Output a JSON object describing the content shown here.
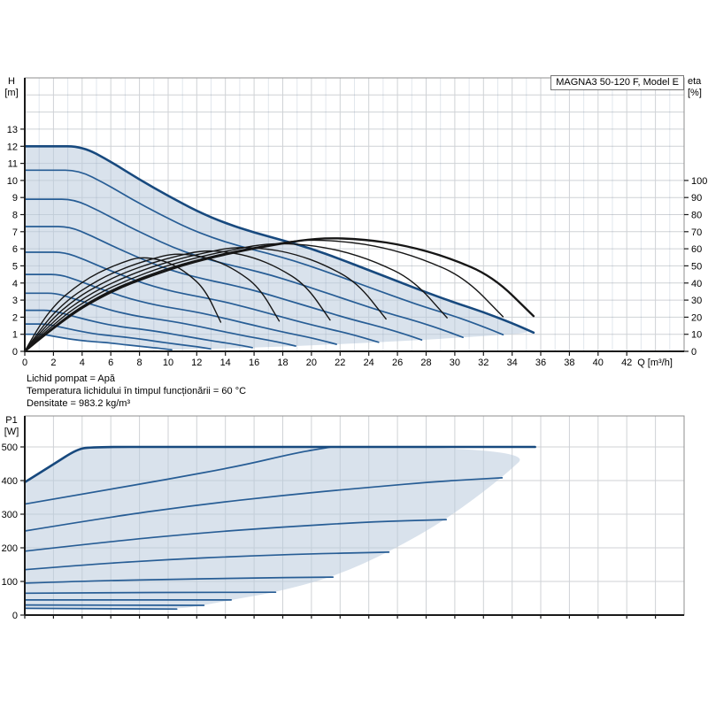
{
  "title_box": {
    "label": "MAGNA3 50-120 F, Model E"
  },
  "notes": [
    "Lichid pompat = Apă",
    "Temperatura lichidului în timpul funcționării = 60 °C",
    "Densitate = 983.2 kg/m³"
  ],
  "colors": {
    "curve_main": "#17497e",
    "curve_inner": "#275d95",
    "efficiency": "#161616",
    "envelope_fill": "#b9cadd",
    "grid": "#cfd2d6",
    "grid_minor": "rgba(110,135,165,0.20)",
    "border": "#8f8f8f",
    "axis": "#1a1a1a",
    "text": "#000000"
  },
  "chart_data": [
    {
      "type": "line",
      "name": "head-flow-efficiency-chart",
      "title": "MAGNA3 50-120 F, Model E",
      "x_axis": {
        "label": "Q [m³/h]",
        "min": 0,
        "max": 46,
        "grid_step": 2,
        "ticks": [
          0,
          2,
          4,
          6,
          8,
          10,
          12,
          14,
          16,
          18,
          20,
          22,
          24,
          26,
          28,
          30,
          32,
          34,
          36,
          38,
          40,
          42
        ]
      },
      "y_axis": {
        "name": "H",
        "unit": "[m]",
        "min": 0,
        "max": 16,
        "ticks": [
          0,
          1,
          2,
          3,
          4,
          5,
          6,
          7,
          8,
          9,
          10,
          11,
          12,
          13
        ]
      },
      "y2_axis": {
        "name": "eta",
        "unit": "[%]",
        "min": 0,
        "max": 100,
        "per_left_unit": 10,
        "ticks": [
          0,
          10,
          20,
          30,
          40,
          50,
          60,
          70,
          80,
          90,
          100
        ]
      },
      "max_speed_curve": [
        [
          0,
          12
        ],
        [
          2,
          12
        ],
        [
          4,
          12
        ],
        [
          6,
          11.1
        ],
        [
          8,
          10.05
        ],
        [
          10,
          9.1
        ],
        [
          12,
          8.2
        ],
        [
          14,
          7.5
        ],
        [
          16,
          6.95
        ],
        [
          18,
          6.5
        ],
        [
          20,
          6.0
        ],
        [
          22,
          5.4
        ],
        [
          24,
          4.75
        ],
        [
          26,
          4.1
        ],
        [
          28,
          3.45
        ],
        [
          30,
          2.85
        ],
        [
          32,
          2.3
        ],
        [
          34,
          1.65
        ],
        [
          35.5,
          1.1
        ]
      ],
      "speed_curve_start_heads": [
        10.6,
        8.9,
        7.3,
        5.8,
        4.5,
        3.4,
        2.4,
        1.6,
        1.0
      ],
      "rated_shutoff_head": 12,
      "max_flow": 35.5,
      "efficiency_curves": {
        "speed_ratios": [
          1.0,
          0.94,
          0.83,
          0.71,
          0.6,
          0.5,
          0.385
        ],
        "peak_eta_at_full_speed": 66.5,
        "peak_factor": [
          0.72,
          0.28
        ],
        "shape": [
          [
            0,
            0
          ],
          [
            0.08,
            0.3
          ],
          [
            0.17,
            0.53
          ],
          [
            0.25,
            0.67
          ],
          [
            0.33,
            0.785
          ],
          [
            0.42,
            0.88
          ],
          [
            0.5,
            0.945
          ],
          [
            0.58,
            1.0
          ],
          [
            0.67,
            0.985
          ],
          [
            0.75,
            0.93
          ],
          [
            0.83,
            0.83
          ],
          [
            0.92,
            0.66
          ],
          [
            1.0,
            0.31
          ]
        ]
      }
    },
    {
      "type": "line",
      "name": "power-flow-chart",
      "x_axis": {
        "min": 0,
        "max": 46,
        "grid_step": 2
      },
      "y_axis": {
        "name": "P1",
        "unit": "[W]",
        "min": 0,
        "max": 592,
        "ticks": [
          0,
          100,
          200,
          300,
          400,
          500
        ]
      },
      "power_limit_w": 500,
      "power_curves": [
        [
          [
            0,
            395
          ],
          [
            2,
            448
          ],
          [
            3.6,
            492
          ],
          [
            4.6,
            500
          ],
          [
            10,
            500
          ],
          [
            35.6,
            500
          ]
        ],
        [
          [
            0,
            330
          ],
          [
            5,
            367
          ],
          [
            10,
            404
          ],
          [
            15,
            443
          ],
          [
            19,
            483
          ],
          [
            21.3,
            499
          ]
        ],
        [
          [
            0,
            250
          ],
          [
            6,
            292
          ],
          [
            12,
            327
          ],
          [
            18,
            356
          ],
          [
            24,
            380
          ],
          [
            29,
            398
          ],
          [
            33.3,
            408
          ]
        ],
        [
          [
            0,
            190
          ],
          [
            6,
            219
          ],
          [
            12,
            243
          ],
          [
            18,
            262
          ],
          [
            24,
            277
          ],
          [
            29.4,
            284
          ]
        ],
        [
          [
            0,
            135
          ],
          [
            5,
            152
          ],
          [
            10,
            165
          ],
          [
            15,
            175
          ],
          [
            20,
            182
          ],
          [
            25.4,
            187
          ]
        ],
        [
          [
            0,
            95
          ],
          [
            5,
            102
          ],
          [
            10,
            106
          ],
          [
            15,
            110
          ],
          [
            21.5,
            113
          ]
        ],
        [
          [
            0,
            65
          ],
          [
            6,
            66.5
          ],
          [
            12,
            67.5
          ],
          [
            17.5,
            68
          ]
        ],
        [
          [
            0,
            45
          ],
          [
            7,
            45
          ],
          [
            14.4,
            45
          ]
        ],
        [
          [
            0,
            30
          ],
          [
            6,
            29.5
          ],
          [
            12.5,
            29
          ]
        ],
        [
          [
            0,
            20
          ],
          [
            5,
            19
          ],
          [
            10.6,
            18
          ]
        ]
      ],
      "envelope_boundary": [
        [
          35.6,
          500
        ],
        [
          33.3,
          408
        ],
        [
          29.4,
          284
        ],
        [
          25.4,
          187
        ],
        [
          21.5,
          113
        ],
        [
          17.5,
          68
        ],
        [
          14.4,
          45
        ],
        [
          12.5,
          29
        ],
        [
          10.6,
          18
        ]
      ]
    }
  ]
}
